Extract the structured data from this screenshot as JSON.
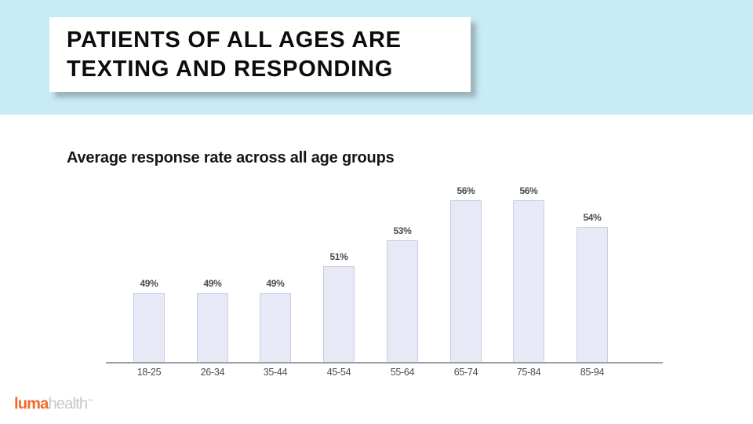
{
  "slide": {
    "title_lines": [
      "PATIENTS OF ALL AGES ARE",
      "TEXTING AND RESPONDING"
    ],
    "subtitle": "Average response rate across all age groups"
  },
  "chart_data": {
    "type": "bar",
    "title": "Average response rate across all age groups",
    "categories": [
      "18-25",
      "26-34",
      "35-44",
      "45-54",
      "55-64",
      "65-74",
      "75-84",
      "85-94"
    ],
    "values": [
      49,
      49,
      49,
      51,
      53,
      56,
      56,
      54
    ],
    "value_labels": [
      "49%",
      "49%",
      "49%",
      "51%",
      "53%",
      "56%",
      "56%",
      "54%"
    ],
    "xlabel": "",
    "ylabel": "",
    "ylim": [
      44,
      58
    ],
    "grid": false,
    "legend": false,
    "bar_fill_color": "#e7e9f6",
    "bar_border_color": "#c9cde9",
    "axis_line_color": "#a0a0a6",
    "label_color": "#4b4b53"
  },
  "footer": {
    "logo_luma": "luma",
    "logo_health": "health",
    "logo_tm": "™"
  },
  "colors": {
    "top_band_blue": "#c8ebf5",
    "title_text": "#0c0c0c",
    "accent_orange": "#f2692a",
    "logo_gray": "#c7c7c9"
  }
}
